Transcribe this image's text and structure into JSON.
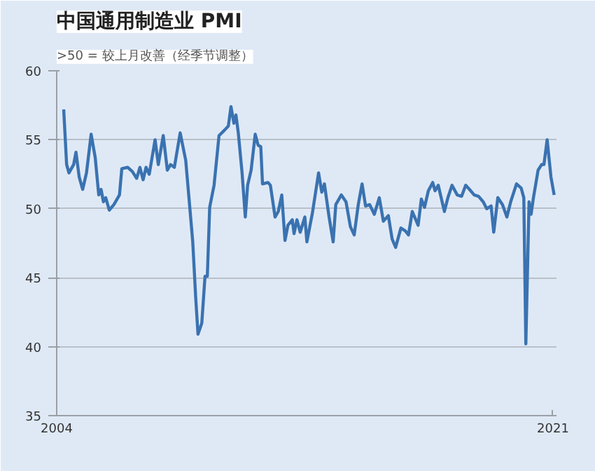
{
  "chart_data": {
    "type": "line",
    "title": "中国通用制造业 PMI",
    "subtitle": ">50 = 较上月改善（经季节调整）",
    "x": [
      2004.24,
      2004.34,
      2004.42,
      2004.58,
      2004.66,
      2004.77,
      2004.89,
      2005.02,
      2005.18,
      2005.32,
      2005.44,
      2005.52,
      2005.6,
      2005.68,
      2005.8,
      2005.96,
      2006.15,
      2006.23,
      2006.43,
      2006.59,
      2006.74,
      2006.85,
      2006.96,
      2007.06,
      2007.17,
      2007.37,
      2007.48,
      2007.65,
      2007.79,
      2007.9,
      2008.03,
      2008.23,
      2008.42,
      2008.53,
      2008.66,
      2008.76,
      2008.84,
      2008.97,
      2009.08,
      2009.16,
      2009.24,
      2009.39,
      2009.56,
      2009.75,
      2009.88,
      2009.97,
      2010.07,
      2010.14,
      2010.22,
      2010.35,
      2010.46,
      2010.54,
      2010.66,
      2010.8,
      2010.9,
      2010.99,
      2011.05,
      2011.24,
      2011.32,
      2011.48,
      2011.59,
      2011.71,
      2011.82,
      2011.92,
      2012.07,
      2012.13,
      2012.23,
      2012.34,
      2012.5,
      2012.57,
      2012.76,
      2012.97,
      2013.08,
      2013.17,
      2013.33,
      2013.47,
      2013.56,
      2013.75,
      2013.91,
      2014.06,
      2014.19,
      2014.33,
      2014.46,
      2014.58,
      2014.72,
      2014.88,
      2015.05,
      2015.19,
      2015.36,
      2015.49,
      2015.61,
      2015.79,
      2015.94,
      2016.05,
      2016.18,
      2016.38,
      2016.49,
      2016.6,
      2016.73,
      2016.88,
      2016.96,
      2017.07,
      2017.28,
      2017.4,
      2017.54,
      2017.72,
      2017.87,
      2018.01,
      2018.14,
      2018.3,
      2018.45,
      2018.61,
      2018.73,
      2018.88,
      2018.97,
      2019.11,
      2019.27,
      2019.42,
      2019.55,
      2019.75,
      2019.91,
      2020.0,
      2020.07,
      2020.18,
      2020.25,
      2020.33,
      2020.49,
      2020.61,
      2020.69,
      2020.8,
      2020.93,
      2021.04
    ],
    "series": [
      {
        "color": "#3a72b0",
        "values": [
          57.2,
          53.2,
          52.6,
          53.2,
          54.1,
          52.3,
          51.4,
          52.6,
          55.4,
          53.7,
          51.0,
          51.4,
          50.5,
          50.8,
          49.9,
          50.3,
          51.0,
          52.9,
          53.0,
          52.7,
          52.2,
          53.0,
          52.1,
          53.0,
          52.5,
          55.0,
          53.2,
          55.3,
          52.8,
          53.2,
          53.0,
          55.5,
          53.5,
          50.8,
          47.6,
          43.6,
          40.9,
          41.7,
          45.1,
          45.1,
          50.1,
          51.7,
          55.3,
          55.7,
          56.0,
          57.4,
          56.2,
          56.8,
          55.5,
          52.6,
          49.4,
          51.7,
          52.8,
          55.4,
          54.6,
          54.5,
          51.8,
          51.9,
          51.7,
          49.4,
          49.8,
          51.0,
          47.7,
          48.8,
          49.2,
          48.2,
          49.2,
          48.3,
          49.4,
          47.6,
          49.7,
          52.6,
          51.2,
          51.8,
          49.4,
          47.6,
          50.3,
          51.0,
          50.5,
          48.7,
          48.1,
          50.3,
          51.8,
          50.2,
          50.3,
          49.6,
          50.8,
          49.1,
          49.5,
          47.8,
          47.2,
          48.6,
          48.4,
          48.1,
          49.8,
          48.8,
          50.7,
          50.1,
          51.3,
          51.9,
          51.3,
          51.7,
          49.8,
          50.8,
          51.7,
          51.0,
          50.9,
          51.7,
          51.4,
          51.0,
          50.9,
          50.5,
          50.0,
          50.2,
          48.3,
          50.8,
          50.3,
          49.4,
          50.5,
          51.8,
          51.5,
          50.8,
          40.2,
          50.5,
          49.6,
          50.8,
          52.8,
          53.2,
          53.2,
          55.0,
          52.3,
          51.0
        ]
      }
    ],
    "xlim": [
      2004,
      2021.12
    ],
    "xticks": [
      {
        "value": 2004,
        "label": "2004"
      },
      {
        "value": 2021,
        "label": "2021"
      }
    ],
    "ylim": [
      35,
      60
    ],
    "yticks": [
      35,
      40,
      45,
      50,
      55,
      60
    ],
    "grid": "y",
    "line_style": "solid",
    "marker": "none"
  }
}
